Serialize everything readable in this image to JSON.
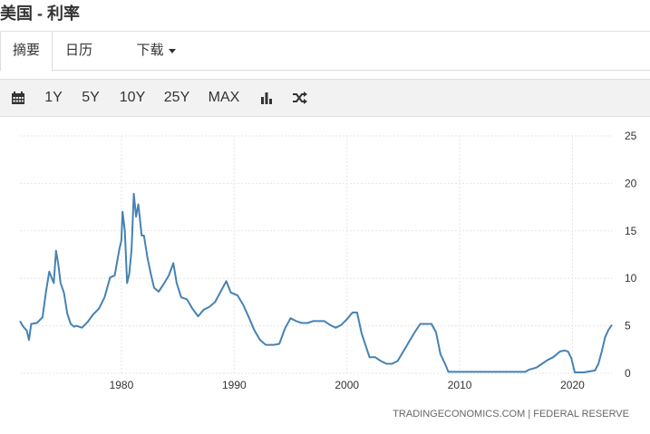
{
  "header": {
    "title": "美国 - 利率"
  },
  "tabs": [
    {
      "label": "摘要"
    },
    {
      "label": "日历"
    },
    {
      "label": "下载"
    }
  ],
  "toolbar": {
    "ranges": [
      "1Y",
      "5Y",
      "10Y",
      "25Y",
      "MAX"
    ],
    "icons": [
      "calendar-icon",
      "bar-chart-icon",
      "shuffle-icon"
    ]
  },
  "colors": {
    "line": "#4682b4",
    "grid": "#e6e6e6",
    "toolbar_bg": "#f2f2f2"
  },
  "chart_data": {
    "type": "line",
    "title": "",
    "xlabel": "",
    "ylabel": "",
    "xlim": [
      1971,
      2023.5
    ],
    "ylim": [
      0,
      25
    ],
    "x_ticks": [
      "1980",
      "1990",
      "2000",
      "2010",
      "2020"
    ],
    "y_ticks": [
      "0",
      "5",
      "10",
      "15",
      "20",
      "25"
    ],
    "y_axis_side": "right",
    "grid": true,
    "source": "TRADINGECONOMICS.COM | FEDERAL RESERVE",
    "series": [
      {
        "x": [
          1971.0,
          1971.3,
          1971.6,
          1971.8,
          1972.0,
          1972.5,
          1973.0,
          1973.3,
          1973.6,
          1974.0,
          1974.2,
          1974.4,
          1974.6,
          1974.9,
          1975.2,
          1975.5,
          1975.8,
          1976.0,
          1976.5,
          1977.0,
          1977.5,
          1978.0,
          1978.5,
          1979.0,
          1979.4,
          1979.8,
          1980.0,
          1980.1,
          1980.3,
          1980.5,
          1980.7,
          1980.9,
          1981.1,
          1981.3,
          1981.5,
          1981.8,
          1982.0,
          1982.3,
          1982.6,
          1982.9,
          1983.3,
          1983.8,
          1984.2,
          1984.6,
          1984.9,
          1985.3,
          1985.8,
          1986.3,
          1986.8,
          1987.3,
          1987.8,
          1988.3,
          1988.8,
          1989.3,
          1989.7,
          1990.3,
          1990.8,
          1991.3,
          1991.8,
          1992.3,
          1992.8,
          1993.5,
          1994.0,
          1994.5,
          1995.0,
          1995.5,
          1996.0,
          1996.5,
          1997.0,
          1997.5,
          1998.0,
          1998.5,
          1999.0,
          1999.5,
          2000.0,
          2000.5,
          2000.9,
          2001.3,
          2001.7,
          2002.0,
          2002.5,
          2003.0,
          2003.5,
          2004.0,
          2004.5,
          2005.0,
          2005.5,
          2006.0,
          2006.5,
          2007.0,
          2007.5,
          2007.9,
          2008.3,
          2008.7,
          2009.0,
          2010.0,
          2012.0,
          2014.0,
          2015.8,
          2016.2,
          2016.8,
          2017.3,
          2017.8,
          2018.3,
          2018.9,
          2019.3,
          2019.6,
          2019.9,
          2020.2,
          2021.0,
          2022.0,
          2022.3,
          2022.6,
          2022.9,
          2023.2,
          2023.5
        ],
        "values": [
          5.5,
          4.9,
          4.5,
          3.5,
          5.2,
          5.3,
          5.9,
          8.5,
          10.7,
          9.5,
          12.9,
          11.5,
          9.5,
          8.5,
          6.3,
          5.2,
          4.9,
          5.0,
          4.8,
          5.4,
          6.2,
          6.8,
          8.0,
          10.1,
          10.3,
          13.0,
          14.0,
          17.0,
          15.0,
          9.5,
          10.5,
          13.0,
          18.9,
          16.5,
          17.8,
          14.5,
          14.5,
          12.2,
          10.5,
          9.0,
          8.6,
          9.5,
          10.3,
          11.6,
          9.5,
          8.0,
          7.8,
          6.8,
          6.0,
          6.7,
          7.0,
          7.5,
          8.6,
          9.7,
          8.5,
          8.2,
          7.2,
          5.9,
          4.5,
          3.5,
          3.0,
          3.0,
          3.1,
          4.7,
          5.8,
          5.5,
          5.3,
          5.3,
          5.5,
          5.5,
          5.5,
          5.1,
          4.8,
          5.1,
          5.7,
          6.4,
          6.4,
          4.2,
          2.8,
          1.7,
          1.7,
          1.3,
          1.0,
          1.0,
          1.3,
          2.3,
          3.3,
          4.3,
          5.2,
          5.2,
          5.2,
          4.3,
          2.0,
          1.0,
          0.15,
          0.15,
          0.15,
          0.15,
          0.15,
          0.4,
          0.6,
          1.0,
          1.4,
          1.7,
          2.3,
          2.4,
          2.3,
          1.6,
          0.1,
          0.1,
          0.3,
          1.0,
          2.3,
          3.8,
          4.6,
          5.1
        ]
      }
    ]
  }
}
